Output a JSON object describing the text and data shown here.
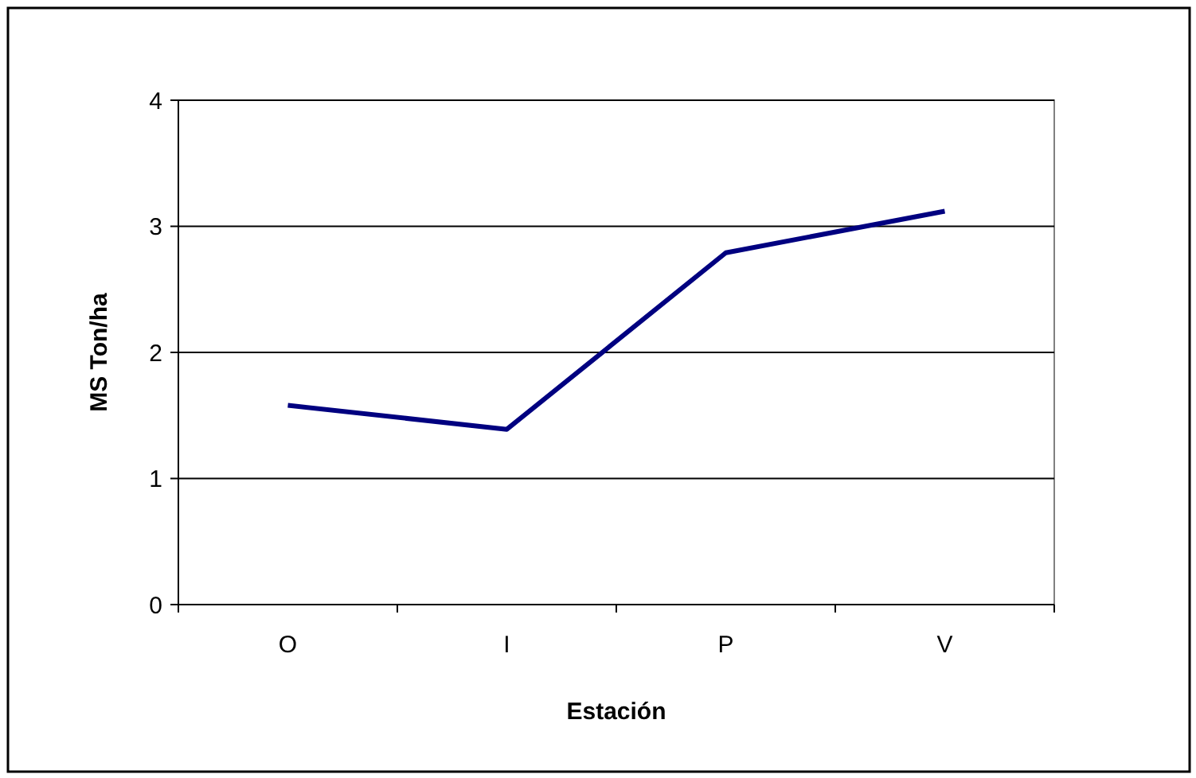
{
  "chart_data": {
    "type": "line",
    "xlabel": "Estación",
    "ylabel": "MS Ton/ha",
    "categories": [
      "O",
      "I",
      "P",
      "V"
    ],
    "series": [
      {
        "color": "#000080",
        "values": [
          1.58,
          1.39,
          2.79,
          3.12
        ]
      }
    ],
    "ylim": [
      0,
      4
    ],
    "yticks": [
      0,
      1,
      2,
      3,
      4
    ],
    "grid": "y",
    "line_style": "solid"
  }
}
